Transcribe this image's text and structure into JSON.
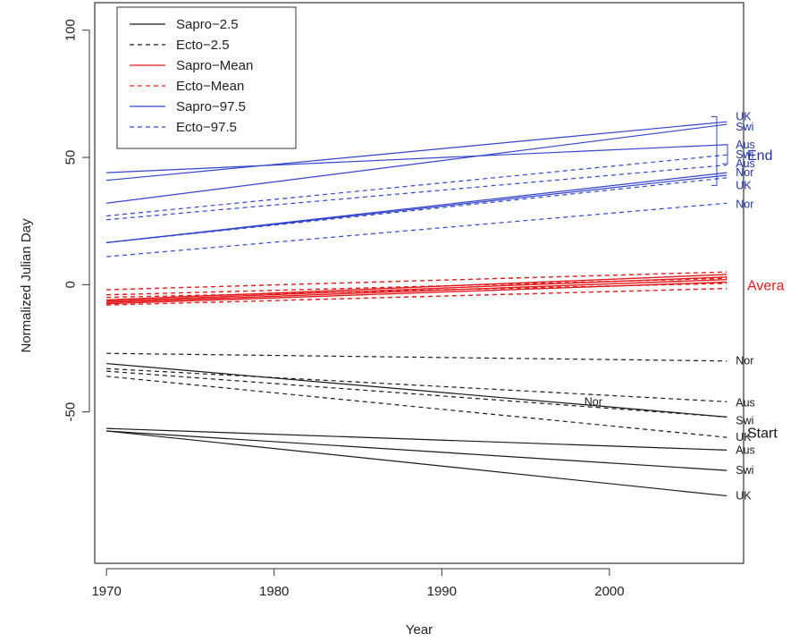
{
  "chart_data": {
    "type": "line",
    "xlabel": "Year",
    "ylabel": "Normalized Julian Day",
    "xlim": [
      1970,
      2007
    ],
    "ylim": [
      -100,
      100
    ],
    "x_ticks": [
      "1970",
      "1980",
      "1990",
      "2000"
    ],
    "y_ticks": [
      "-50",
      "0",
      "50",
      "100"
    ],
    "legend": [
      {
        "label": "Sapro−2.5",
        "color": "#1a1a1a",
        "dash": false
      },
      {
        "label": "Ecto−2.5",
        "color": "#1a1a1a",
        "dash": true
      },
      {
        "label": "Sapro−Mean",
        "color": "#e31a1c",
        "dash": false
      },
      {
        "label": "Ecto−Mean",
        "color": "#e31a1c",
        "dash": true
      },
      {
        "label": "Sapro−97.5",
        "color": "#3344cc",
        "dash": false
      },
      {
        "label": "Ecto−97.5",
        "color": "#3344cc",
        "dash": true
      }
    ],
    "series": [
      {
        "group": "end",
        "type": "sapro",
        "color": "#3344cc",
        "x": [
          1970,
          2007
        ],
        "y": [
          41,
          64
        ],
        "label": "UK",
        "label_y": 66
      },
      {
        "group": "end",
        "type": "sapro",
        "color": "#3344cc",
        "x": [
          1970,
          2007
        ],
        "y": [
          32,
          63
        ],
        "label": "Swi",
        "label_y": 62
      },
      {
        "group": "end",
        "type": "sapro",
        "color": "#3344cc",
        "x": [
          1970,
          2007
        ],
        "y": [
          44,
          55
        ],
        "label": "Aus",
        "label_y": 55
      },
      {
        "group": "end",
        "type": "sapro",
        "color": "#3344cc",
        "x": [
          1970,
          2007
        ],
        "y": [
          16.5,
          44
        ],
        "label": "Nor",
        "label_y": 44
      },
      {
        "group": "end",
        "type": "sapro",
        "color": "#3344cc",
        "x": [
          1970,
          2007
        ],
        "y": [
          16.5,
          43
        ],
        "label": "UK",
        "label_y": 39
      },
      {
        "group": "end",
        "type": "ecto",
        "color": "#3344cc",
        "x": [
          1970,
          2007
        ],
        "y": [
          27,
          51
        ],
        "label": "Swi",
        "label_y": 51
      },
      {
        "group": "end",
        "type": "ecto",
        "color": "#3344cc",
        "x": [
          1970,
          2007
        ],
        "y": [
          25.5,
          47
        ],
        "label": "Aus",
        "label_y": 47.5
      },
      {
        "group": "end",
        "type": "ecto",
        "color": "#3344cc",
        "x": [
          1970,
          2007
        ],
        "y": [
          16.5,
          42
        ],
        "label": "",
        "label_y": 42
      },
      {
        "group": "end",
        "type": "ecto",
        "color": "#3344cc",
        "x": [
          1970,
          2007
        ],
        "y": [
          11,
          32
        ],
        "label": "Nor",
        "label_y": 31.5
      },
      {
        "group": "average",
        "type": "sapro",
        "color": "#e31a1c",
        "x": [
          1970,
          2007
        ],
        "y": [
          -6,
          4
        ],
        "label": "",
        "label_y": 4
      },
      {
        "group": "average",
        "type": "sapro",
        "color": "#e31a1c",
        "x": [
          1970,
          2007
        ],
        "y": [
          -6.5,
          3
        ],
        "label": "",
        "label_y": 3
      },
      {
        "group": "average",
        "type": "sapro",
        "color": "#e31a1c",
        "x": [
          1970,
          2007
        ],
        "y": [
          -7,
          2
        ],
        "label": "",
        "label_y": 2
      },
      {
        "group": "average",
        "type": "sapro",
        "color": "#e31a1c",
        "x": [
          1970,
          2007
        ],
        "y": [
          -7.5,
          1
        ],
        "label": "",
        "label_y": 1
      },
      {
        "group": "average",
        "type": "ecto",
        "color": "#e31a1c",
        "x": [
          1970,
          2007
        ],
        "y": [
          -2,
          5
        ],
        "label": "",
        "label_y": 5
      },
      {
        "group": "average",
        "type": "ecto",
        "color": "#e31a1c",
        "x": [
          1970,
          2007
        ],
        "y": [
          -4,
          2.5
        ],
        "label": "",
        "label_y": 2.5
      },
      {
        "group": "average",
        "type": "ecto",
        "color": "#e31a1c",
        "x": [
          1970,
          2007
        ],
        "y": [
          -5,
          0.5
        ],
        "label": "",
        "label_y": 0.5
      },
      {
        "group": "average",
        "type": "ecto",
        "color": "#e31a1c",
        "x": [
          1970,
          2007
        ],
        "y": [
          -8,
          -1.5
        ],
        "label": "",
        "label_y": -1.5
      },
      {
        "group": "start",
        "type": "ecto",
        "color": "#1a1a1a",
        "x": [
          1970,
          2007
        ],
        "y": [
          -27,
          -30
        ],
        "label": "Nor",
        "label_y": -30
      },
      {
        "group": "start",
        "type": "ecto",
        "color": "#1a1a1a",
        "x": [
          1970,
          2007
        ],
        "y": [
          -33,
          -46
        ],
        "label": "Aus",
        "label_y": -46.5
      },
      {
        "group": "start",
        "type": "ecto",
        "color": "#1a1a1a",
        "x": [
          1970,
          2007
        ],
        "y": [
          -34,
          -52
        ],
        "label": "",
        "label_y": -52
      },
      {
        "group": "start",
        "type": "ecto",
        "color": "#1a1a1a",
        "x": [
          1970,
          2007
        ],
        "y": [
          -36,
          -60
        ],
        "label": "UK",
        "label_y": -60
      },
      {
        "group": "start",
        "type": "sapro",
        "color": "#1a1a1a",
        "x": [
          1970,
          2007
        ],
        "y": [
          -31,
          -52
        ],
        "label": "Swi",
        "label_y": -53.5
      },
      {
        "group": "start",
        "type": "sapro",
        "color": "#1a1a1a",
        "x": [
          1970,
          2007
        ],
        "y": [
          -56.5,
          -65
        ],
        "label": "Aus",
        "label_y": -65
      },
      {
        "group": "start",
        "type": "sapro",
        "color": "#1a1a1a",
        "x": [
          1970,
          2007
        ],
        "y": [
          -57.5,
          -73
        ],
        "label": "Swi",
        "label_y": -73
      },
      {
        "group": "start",
        "type": "sapro",
        "color": "#1a1a1a",
        "x": [
          1970,
          2007
        ],
        "y": [
          -57.5,
          -83
        ],
        "label": "UK",
        "label_y": -83
      }
    ],
    "inline_labels": [
      {
        "text": "Nor",
        "x": 1998.5,
        "y": -46,
        "color": "#1a1a1a"
      }
    ],
    "group_labels": [
      {
        "text": "End",
        "y": 51,
        "color": "#2233aa"
      },
      {
        "text": "Avera",
        "y": 0,
        "color": "#e31a1c"
      },
      {
        "text": "Start",
        "y": -58,
        "color": "#111111"
      }
    ],
    "brackets": [
      {
        "y_top": 66,
        "y_bottom": 39,
        "color": "#3344cc",
        "offset": 0
      },
      {
        "y_top": 55,
        "y_bottom": 47.5,
        "color": "#3344cc",
        "offset": 1
      }
    ]
  }
}
